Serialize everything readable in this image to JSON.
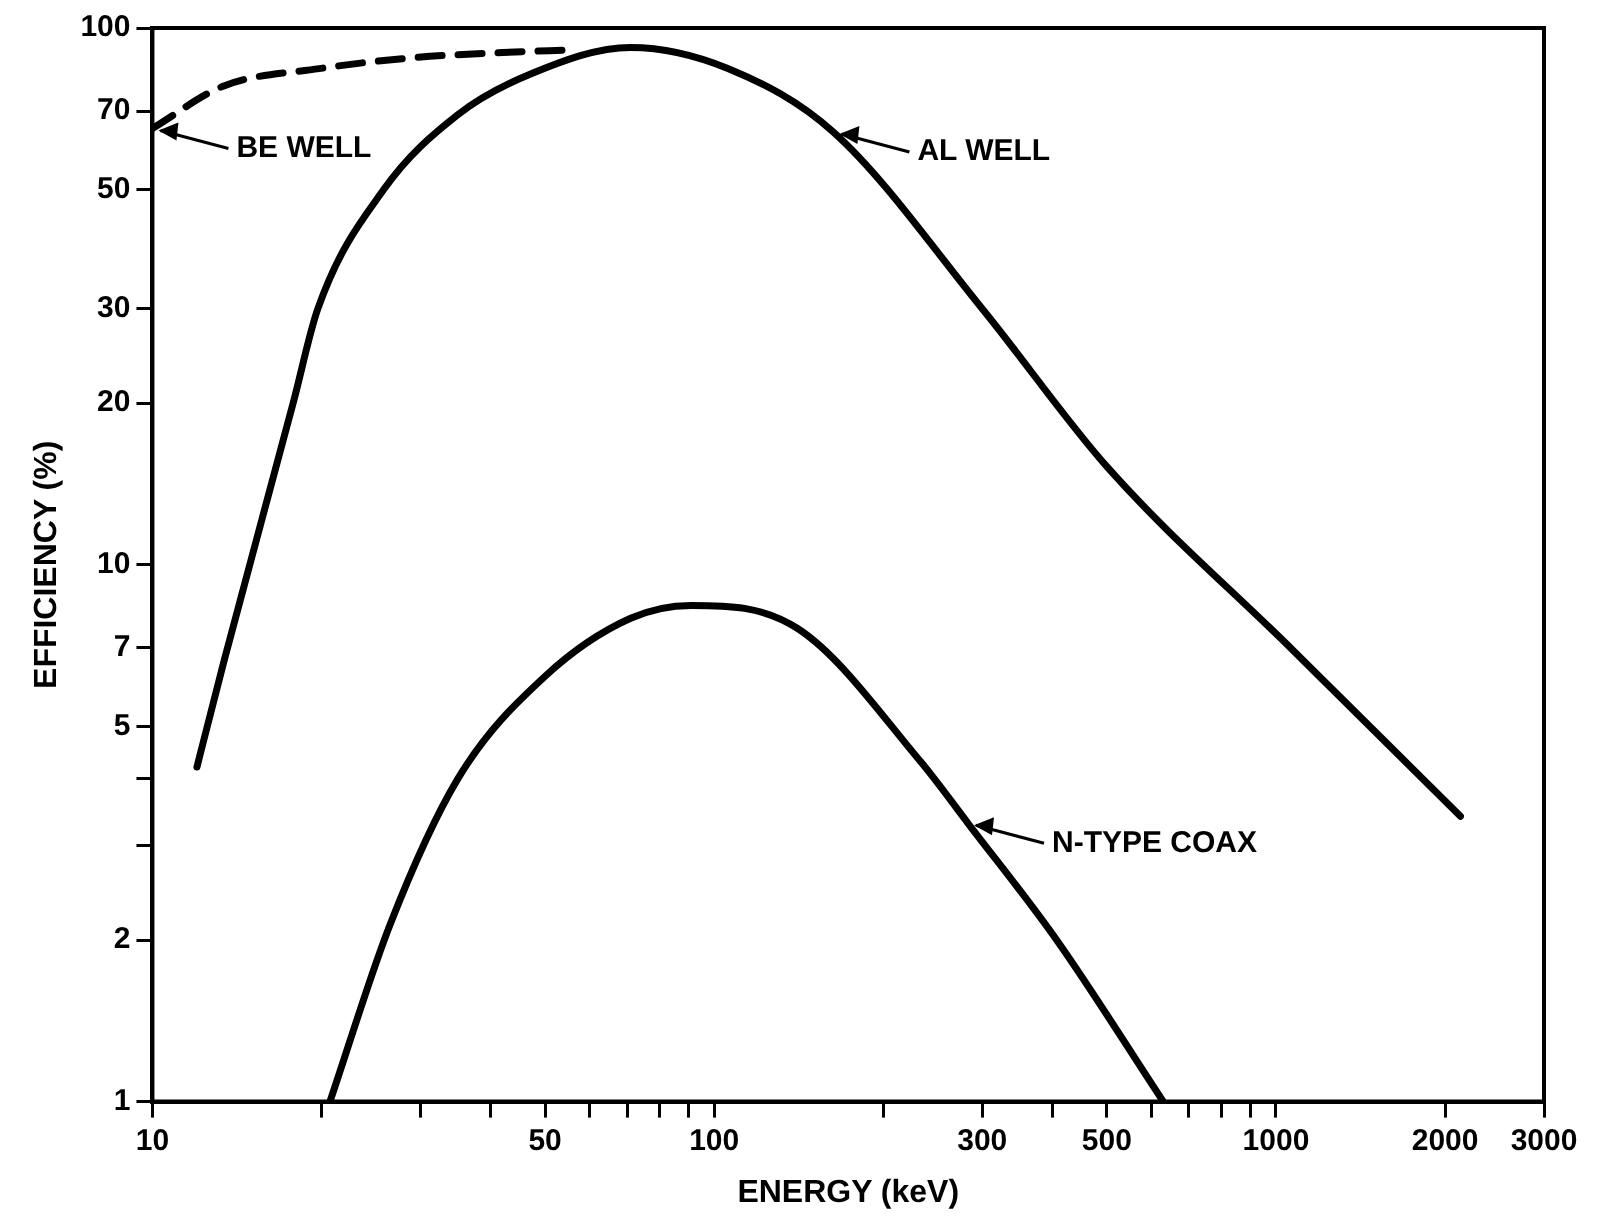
{
  "chart_data": {
    "type": "line",
    "xlabel": "ENERGY (keV)",
    "ylabel": "EFFICIENCY (%)",
    "log": "xy",
    "grid": false,
    "legend": false,
    "marker": "none",
    "xlim": [
      10,
      3000
    ],
    "ylim": [
      1,
      100
    ],
    "xticks": [
      10,
      {
        "value": 20,
        "label": null
      },
      {
        "value": 30,
        "label": null
      },
      {
        "value": 40,
        "label": null
      },
      50,
      {
        "value": 60,
        "label": null
      },
      {
        "value": 70,
        "label": null
      },
      {
        "value": 80,
        "label": null
      },
      {
        "value": 90,
        "label": null
      },
      100,
      {
        "value": 200,
        "label": null
      },
      300,
      {
        "value": 400,
        "label": null
      },
      500,
      {
        "value": 600,
        "label": null
      },
      {
        "value": 700,
        "label": null
      },
      {
        "value": 800,
        "label": null
      },
      {
        "value": 900,
        "label": null
      },
      1000,
      2000,
      3000
    ],
    "yticks": [
      1,
      2,
      {
        "value": 3,
        "label": null
      },
      {
        "value": 4,
        "label": null
      },
      5,
      7,
      10,
      20,
      30,
      50,
      70,
      100
    ],
    "series": [
      {
        "color": "#000000",
        "line_style": "solid",
        "x": [
          12,
          13.4,
          17.8,
          19.7,
          25.8,
          35,
          47,
          71,
          106,
          163,
          300,
          501,
          1062,
          2130
        ],
        "values": [
          4.2,
          6.6,
          20,
          30,
          50,
          69,
          82,
          92,
          84,
          64,
          30,
          15.2,
          7,
          3.4
        ]
      },
      {
        "color": "#000000",
        "line_style": "dashed",
        "x": [
          10,
          13.4,
          19.8,
          29,
          42,
          55
        ],
        "values": [
          65,
          78,
          84,
          88,
          90,
          91
        ]
      },
      {
        "color": "#000000",
        "line_style": "solid",
        "x": [
          20.7,
          26.5,
          35,
          50,
          71,
          91,
          141,
          233,
          283,
          407,
          630
        ],
        "values": [
          1,
          2.14,
          4,
          6.2,
          7.95,
          8.4,
          7.6,
          4.3,
          3.3,
          2,
          1
        ]
      }
    ],
    "annotations": [
      {
        "text": "BE WELL",
        "x": 10,
        "y": 65
      },
      {
        "text": "AL WELL",
        "x": 163,
        "y": 64
      },
      {
        "text": "N-TYPE COAX",
        "x": 283,
        "y": 3.3
      }
    ]
  }
}
